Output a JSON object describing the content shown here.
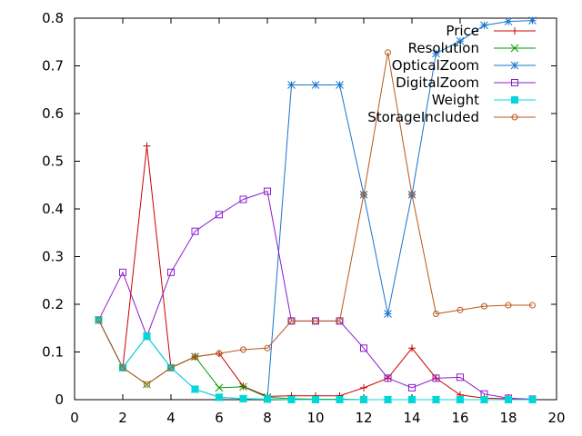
{
  "chart_data": {
    "type": "line",
    "title": "",
    "xlabel": "",
    "ylabel": "",
    "xlim": [
      0,
      20
    ],
    "ylim": [
      0,
      0.8
    ],
    "x_ticks": [
      "0",
      "2",
      "4",
      "6",
      "8",
      "10",
      "12",
      "14",
      "16",
      "18",
      "20"
    ],
    "y_ticks": [
      "0",
      "0.1",
      "0.2",
      "0.3",
      "0.4",
      "0.5",
      "0.6",
      "0.7",
      "0.8"
    ],
    "grid": false,
    "legend_position": "top-right",
    "x": [
      1,
      2,
      3,
      4,
      5,
      6,
      7,
      8,
      9,
      10,
      11,
      12,
      13,
      14,
      15,
      16,
      17,
      18,
      19
    ],
    "series": [
      {
        "name": "Price",
        "color": "#cc0000",
        "marker": "plus",
        "values": [
          0.167,
          0.067,
          0.532,
          0.067,
          0.09,
          0.097,
          0.028,
          0.007,
          0.008,
          0.008,
          0.008,
          0.025,
          0.045,
          0.108,
          0.045,
          0.01,
          0.003,
          0.002,
          0.001
        ]
      },
      {
        "name": "Resolution",
        "color": "#009900",
        "marker": "cross",
        "values": [
          0.167,
          0.067,
          0.032,
          0.067,
          0.09,
          0.025,
          0.027,
          0.005,
          0.002,
          0.001,
          0.001,
          0.0,
          0.0,
          0.0,
          0.0,
          0.0,
          0.0,
          0.0,
          0.0
        ]
      },
      {
        "name": "OpticalZoom",
        "color": "#1874cd",
        "marker": "star",
        "values": [
          0.167,
          0.067,
          0.133,
          0.067,
          0.022,
          0.005,
          0.002,
          0.001,
          0.66,
          0.66,
          0.66,
          0.43,
          0.18,
          0.43,
          0.726,
          0.752,
          0.785,
          0.793,
          0.795
        ]
      },
      {
        "name": "DigitalZoom",
        "color": "#8b1ccd",
        "marker": "open-square",
        "values": [
          0.167,
          0.267,
          0.133,
          0.267,
          0.353,
          0.388,
          0.42,
          0.437,
          0.165,
          0.165,
          0.165,
          0.108,
          0.045,
          0.025,
          0.045,
          0.047,
          0.012,
          0.003,
          0.001
        ]
      },
      {
        "name": "Weight",
        "color": "#00d8d8",
        "marker": "filled-square",
        "values": [
          0.167,
          0.067,
          0.133,
          0.067,
          0.022,
          0.005,
          0.002,
          0.001,
          0.0,
          0.0,
          0.0,
          0.0,
          0.0,
          0.0,
          0.0,
          0.0,
          0.0,
          0.0,
          0.0
        ]
      },
      {
        "name": "StorageIncluded",
        "color": "#b8581a",
        "marker": "circle",
        "values": [
          0.167,
          0.067,
          0.032,
          0.067,
          0.09,
          0.097,
          0.105,
          0.108,
          0.165,
          0.165,
          0.165,
          0.43,
          0.728,
          0.43,
          0.18,
          0.188,
          0.196,
          0.198,
          0.198
        ]
      }
    ]
  }
}
